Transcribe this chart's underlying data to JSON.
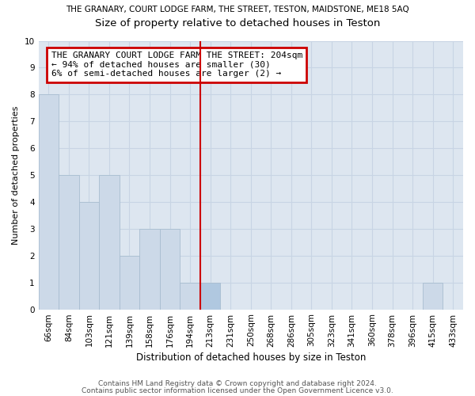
{
  "title_main": "THE GRANARY, COURT LODGE FARM, THE STREET, TESTON, MAIDSTONE, ME18 5AQ",
  "title_sub": "Size of property relative to detached houses in Teston",
  "xlabel": "Distribution of detached houses by size in Teston",
  "ylabel": "Number of detached properties",
  "categories": [
    "66sqm",
    "84sqm",
    "103sqm",
    "121sqm",
    "139sqm",
    "158sqm",
    "176sqm",
    "194sqm",
    "213sqm",
    "231sqm",
    "250sqm",
    "268sqm",
    "286sqm",
    "305sqm",
    "323sqm",
    "341sqm",
    "360sqm",
    "378sqm",
    "396sqm",
    "415sqm",
    "433sqm"
  ],
  "values": [
    8,
    5,
    4,
    5,
    2,
    3,
    3,
    1,
    1,
    0,
    0,
    0,
    0,
    0,
    0,
    0,
    0,
    0,
    0,
    1,
    0
  ],
  "bar_color": "#ccd9e8",
  "bar_edge_color": "#a8bdd0",
  "subject_bar_index": 8,
  "subject_bar_color": "#b0c8e0",
  "vline_x_index": 8,
  "vline_color": "#cc0000",
  "annotation_text": "THE GRANARY COURT LODGE FARM THE STREET: 204sqm\n← 94% of detached houses are smaller (30)\n6% of semi-detached houses are larger (2) →",
  "annotation_box_color": "#cc0000",
  "ylim": [
    0,
    10
  ],
  "yticks": [
    0,
    1,
    2,
    3,
    4,
    5,
    6,
    7,
    8,
    9,
    10
  ],
  "grid_color": "#c8d4e4",
  "background_color": "#dde6f0",
  "footer1": "Contains HM Land Registry data © Crown copyright and database right 2024.",
  "footer2": "Contains public sector information licensed under the Open Government Licence v3.0.",
  "title_main_fontsize": 7.5,
  "title_sub_fontsize": 9.5,
  "xlabel_fontsize": 8.5,
  "ylabel_fontsize": 8,
  "tick_fontsize": 7.5,
  "footer_fontsize": 6.5,
  "annotation_fontsize": 8
}
